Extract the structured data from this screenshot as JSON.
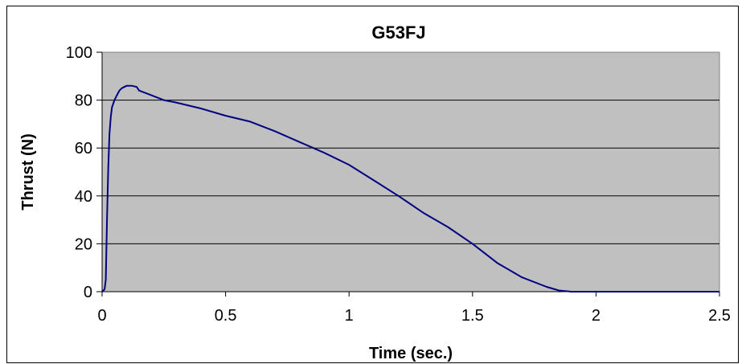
{
  "chart_data": {
    "type": "line",
    "title": "G53FJ",
    "xlabel": "Time (sec.)",
    "ylabel": "Thrust (N)",
    "xlim": [
      0,
      2.5
    ],
    "ylim": [
      0,
      100
    ],
    "x_ticks": [
      "0",
      "0.5",
      "1",
      "1.5",
      "2",
      "2.5"
    ],
    "y_ticks": [
      "0",
      "20",
      "40",
      "60",
      "80",
      "100"
    ],
    "grid": "horizontal",
    "plot_background": "#c0c0c0",
    "line_color": "#000080",
    "series": [
      {
        "x": [
          0,
          0.01,
          0.015,
          0.02,
          0.025,
          0.03,
          0.035,
          0.04,
          0.05,
          0.06,
          0.07,
          0.08,
          0.09,
          0.1,
          0.12,
          0.14,
          0.15,
          0.2,
          0.25,
          0.3,
          0.4,
          0.5,
          0.6,
          0.7,
          0.8,
          0.9,
          1.0,
          1.1,
          1.2,
          1.3,
          1.4,
          1.5,
          1.55,
          1.6,
          1.7,
          1.8,
          1.85,
          1.88,
          1.9,
          2.0,
          2.2,
          2.4,
          2.5
        ],
        "y": [
          0,
          1,
          5,
          30,
          52,
          66,
          73,
          77,
          80,
          82,
          84,
          85,
          85.5,
          86,
          86,
          85.5,
          84,
          82,
          80,
          79,
          76.5,
          73.5,
          71,
          67,
          62.5,
          58,
          53,
          46.5,
          40,
          33,
          27,
          20,
          16,
          12,
          6,
          2,
          0.5,
          0.2,
          0,
          0,
          0,
          0,
          0
        ]
      }
    ]
  }
}
